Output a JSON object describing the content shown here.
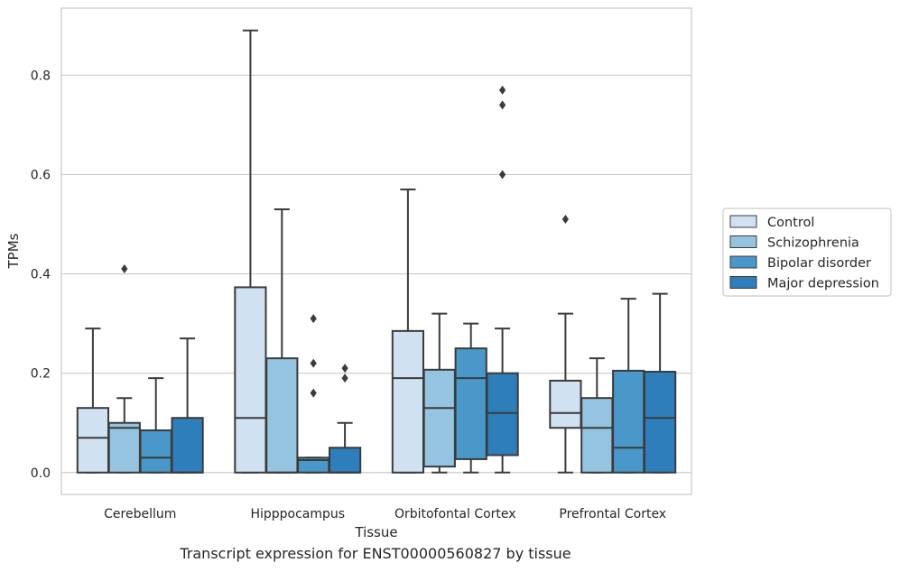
{
  "caption": "Transcript expression for ENST00000560827 by tissue",
  "chart_data": {
    "type": "box",
    "xlabel": "Tissue",
    "ylabel": "TPMs",
    "ylim": [
      -0.044,
      0.935
    ],
    "yticks": [
      0.0,
      0.2,
      0.4,
      0.6,
      0.8
    ],
    "ytick_labels": [
      "0.0",
      "0.2",
      "0.4",
      "0.6",
      "0.8"
    ],
    "grid": "horizontal",
    "legend_position": "right",
    "categories": [
      "Cerebellum",
      "Hipppocampus",
      "Orbitofontal Cortex",
      "Prefrontal Cortex"
    ],
    "series": [
      {
        "name": "Control",
        "color": "#d0e1f2",
        "boxes": [
          {
            "whislo": 0.0,
            "q1": 0.0,
            "med": 0.07,
            "q3": 0.13,
            "whishi": 0.29,
            "fliers": []
          },
          {
            "whislo": 0.0,
            "q1": 0.0,
            "med": 0.11,
            "q3": 0.373,
            "whishi": 0.89,
            "fliers": []
          },
          {
            "whislo": 0.0,
            "q1": 0.0,
            "med": 0.19,
            "q3": 0.285,
            "whishi": 0.57,
            "fliers": []
          },
          {
            "whislo": 0.0,
            "q1": 0.09,
            "med": 0.12,
            "q3": 0.185,
            "whishi": 0.32,
            "fliers": [
              0.51
            ]
          }
        ]
      },
      {
        "name": "Schizophrenia",
        "color": "#94c4df",
        "boxes": [
          {
            "whislo": 0.0,
            "q1": 0.0,
            "med": 0.09,
            "q3": 0.1,
            "whishi": 0.15,
            "fliers": [
              0.41
            ]
          },
          {
            "whislo": 0.0,
            "q1": 0.0,
            "med": 0.0,
            "q3": 0.23,
            "whishi": 0.53,
            "fliers": []
          },
          {
            "whislo": 0.0,
            "q1": 0.012,
            "med": 0.13,
            "q3": 0.207,
            "whishi": 0.32,
            "fliers": []
          },
          {
            "whislo": 0.0,
            "q1": 0.0,
            "med": 0.09,
            "q3": 0.15,
            "whishi": 0.23,
            "fliers": []
          }
        ]
      },
      {
        "name": "Bipolar disorder",
        "color": "#4a98c9",
        "boxes": [
          {
            "whislo": 0.0,
            "q1": 0.0,
            "med": 0.03,
            "q3": 0.085,
            "whishi": 0.19,
            "fliers": []
          },
          {
            "whislo": 0.0,
            "q1": 0.0,
            "med": 0.025,
            "q3": 0.03,
            "whishi": 0.03,
            "fliers": [
              0.31,
              0.22,
              0.16
            ]
          },
          {
            "whislo": 0.0,
            "q1": 0.027,
            "med": 0.19,
            "q3": 0.25,
            "whishi": 0.3,
            "fliers": []
          },
          {
            "whislo": 0.0,
            "q1": 0.0,
            "med": 0.05,
            "q3": 0.205,
            "whishi": 0.35,
            "fliers": []
          }
        ]
      },
      {
        "name": "Major depression",
        "color": "#2e7ebc",
        "boxes": [
          {
            "whislo": 0.0,
            "q1": 0.0,
            "med": 0.0,
            "q3": 0.11,
            "whishi": 0.27,
            "fliers": []
          },
          {
            "whislo": 0.0,
            "q1": 0.0,
            "med": 0.0,
            "q3": 0.05,
            "whishi": 0.1,
            "fliers": [
              0.21,
              0.19
            ]
          },
          {
            "whislo": 0.0,
            "q1": 0.035,
            "med": 0.12,
            "q3": 0.2,
            "whishi": 0.29,
            "fliers": [
              0.77,
              0.74,
              0.6
            ]
          },
          {
            "whislo": 0.0,
            "q1": 0.0,
            "med": 0.11,
            "q3": 0.203,
            "whishi": 0.36,
            "fliers": []
          }
        ]
      }
    ]
  }
}
